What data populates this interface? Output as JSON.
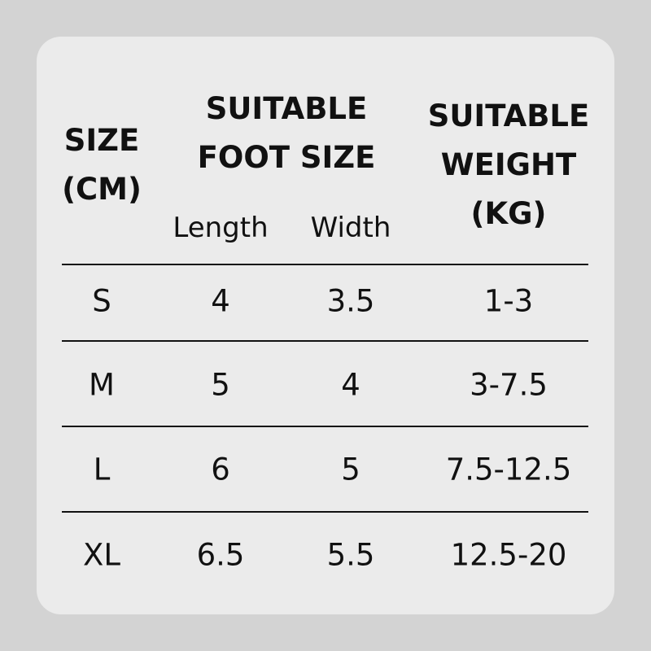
{
  "header": {
    "size": [
      "SIZE",
      "(CM)"
    ],
    "foot": [
      "SUITABLE",
      "FOOT SIZE"
    ],
    "length": "Length",
    "width": "Width",
    "weight": [
      "SUITABLE",
      "WEIGHT",
      "(KG)"
    ]
  },
  "rows": [
    {
      "size": "S",
      "length": "4",
      "width": "3.5",
      "weight": "1-3"
    },
    {
      "size": "M",
      "length": "5",
      "width": "4",
      "weight": "3-7.5"
    },
    {
      "size": "L",
      "length": "6",
      "width": "5",
      "weight": "7.5-12.5"
    },
    {
      "size": "XL",
      "length": "6.5",
      "width": "5.5",
      "weight": "12.5-20"
    }
  ]
}
